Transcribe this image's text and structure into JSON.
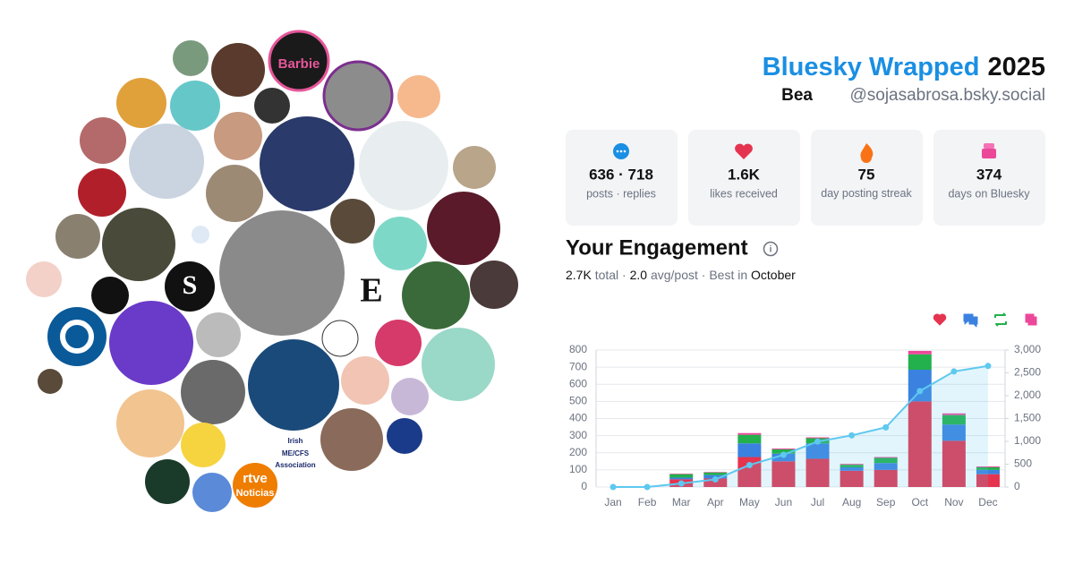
{
  "header": {
    "title": "Bluesky Wrapped",
    "year": "2025",
    "name": "Bea",
    "handle": "@sojasabrosa.bsky.social"
  },
  "stats": [
    {
      "value": "636 · 718",
      "label": "posts · replies"
    },
    {
      "value": "1.6K",
      "label": "likes received"
    },
    {
      "value": "75",
      "label": "day posting streak"
    },
    {
      "value": "374",
      "label": "days on Bluesky"
    }
  ],
  "engagement": {
    "title": "Your Engagement",
    "summary": [
      "2.7K",
      " total · ",
      "2.0",
      " avg/post · Best in ",
      "October"
    ]
  },
  "avatars": {
    "texts": [
      "Barbie",
      "S",
      "E",
      "rtve",
      "Noticias",
      "Irish",
      "ME/CFS",
      "Association"
    ]
  },
  "chart_data": {
    "type": "bar",
    "stacked": true,
    "grid": true,
    "categories": [
      "Jan",
      "Feb",
      "Mar",
      "Apr",
      "May",
      "Jun",
      "Jul",
      "Aug",
      "Sep",
      "Oct",
      "Nov",
      "Dec"
    ],
    "series": [
      {
        "color": "#e5344f",
        "values": [
          0,
          0,
          45,
          50,
          175,
          150,
          165,
          95,
          100,
          500,
          270,
          75
        ]
      },
      {
        "color": "#3b82e0",
        "values": [
          0,
          0,
          10,
          20,
          80,
          45,
          90,
          20,
          40,
          185,
          95,
          25
        ]
      },
      {
        "color": "#22b14c",
        "values": [
          0,
          0,
          20,
          15,
          50,
          25,
          30,
          15,
          30,
          90,
          55,
          15
        ]
      },
      {
        "color": "#ec4899",
        "values": [
          0,
          0,
          3,
          3,
          10,
          5,
          5,
          5,
          5,
          20,
          10,
          5
        ]
      },
      {
        "color": "#5ec8f0",
        "axis": "y2",
        "values": [
          0,
          0,
          78,
          166,
          481,
          706,
          996,
          1131,
          1306,
          2101,
          2531,
          2651
        ]
      }
    ],
    "ylim": [
      0,
      800
    ],
    "yticks": [
      0,
      100,
      200,
      300,
      400,
      500,
      600,
      700,
      800
    ],
    "y2lim": [
      0,
      3000
    ],
    "y2ticks": [
      0,
      500,
      {
        "value": 1000,
        "label": "1,000"
      },
      {
        "value": 1500,
        "label": "1,500"
      },
      {
        "value": 2000,
        "label": "2,000"
      },
      {
        "value": 2500,
        "label": "2,500"
      },
      {
        "value": 3000,
        "label": "3,000"
      }
    ]
  }
}
